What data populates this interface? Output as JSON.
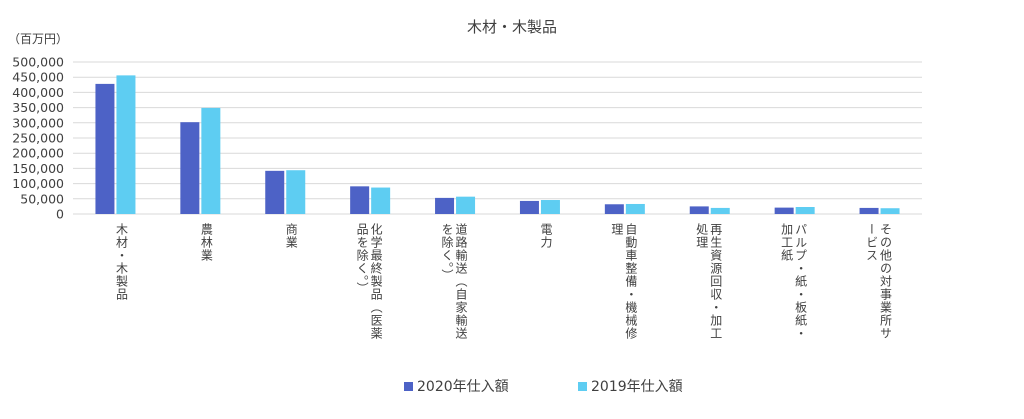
{
  "chart_data": {
    "type": "bar",
    "title": "木材・木製品",
    "unit_label": "（百万円）",
    "ylim": [
      0,
      500000
    ],
    "yticks": [
      "0",
      "50,000",
      "100,000",
      "150,000",
      "200,000",
      "250,000",
      "300,000",
      "350,000",
      "400,000",
      "450,000",
      "500,000"
    ],
    "grid": true,
    "legend_position": "bottom",
    "categories": [
      "木材・木製品",
      "農林業",
      "商業",
      "化学最終製品（医薬品を除く。）",
      "道路輸送（自家輸送を除く。）",
      "電力",
      "自動車整備・機械修理",
      "再生資源回収・加工処理",
      "パルプ・紙・板紙・加工紙",
      "その他の対事業所サービス"
    ],
    "series": [
      {
        "name": "2020年仕入額",
        "color": "#4d62c6",
        "values": [
          428000,
          302000,
          142000,
          91000,
          53000,
          43000,
          32000,
          25000,
          21000,
          20000
        ]
      },
      {
        "name": "2019年仕入額",
        "color": "#5ecdf2",
        "values": [
          456000,
          349000,
          144000,
          87000,
          57000,
          46000,
          33000,
          20000,
          23000,
          19000
        ]
      }
    ]
  }
}
